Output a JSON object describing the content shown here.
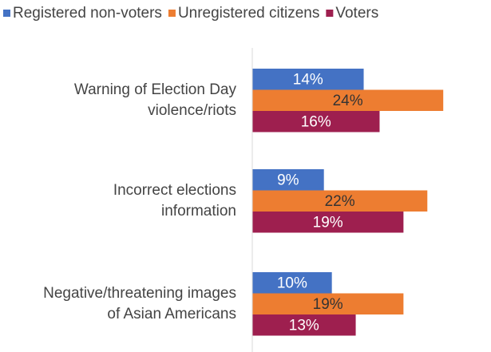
{
  "chart_data": {
    "type": "bar",
    "orientation": "horizontal",
    "categories": [
      [
        "Warning of Election Day",
        "violence/riots"
      ],
      [
        "Incorrect elections",
        "information"
      ],
      [
        "Negative/threatening images",
        "of Asian Americans"
      ]
    ],
    "series": [
      {
        "name": "Registered non-voters",
        "color": "#4472c4",
        "values": [
          14,
          9,
          10
        ],
        "value_labels": [
          "14%",
          "9%",
          "10%"
        ]
      },
      {
        "name": "Unregistered citizens",
        "color": "#ed7d31",
        "values": [
          24,
          22,
          19
        ],
        "value_labels": [
          "24%",
          "22%",
          "19%"
        ]
      },
      {
        "name": "Voters",
        "color": "#9e1f4f",
        "values": [
          16,
          19,
          13
        ],
        "value_labels": [
          "16%",
          "19%",
          "13%"
        ]
      }
    ],
    "xlim": [
      0,
      30
    ],
    "legend": "top"
  }
}
